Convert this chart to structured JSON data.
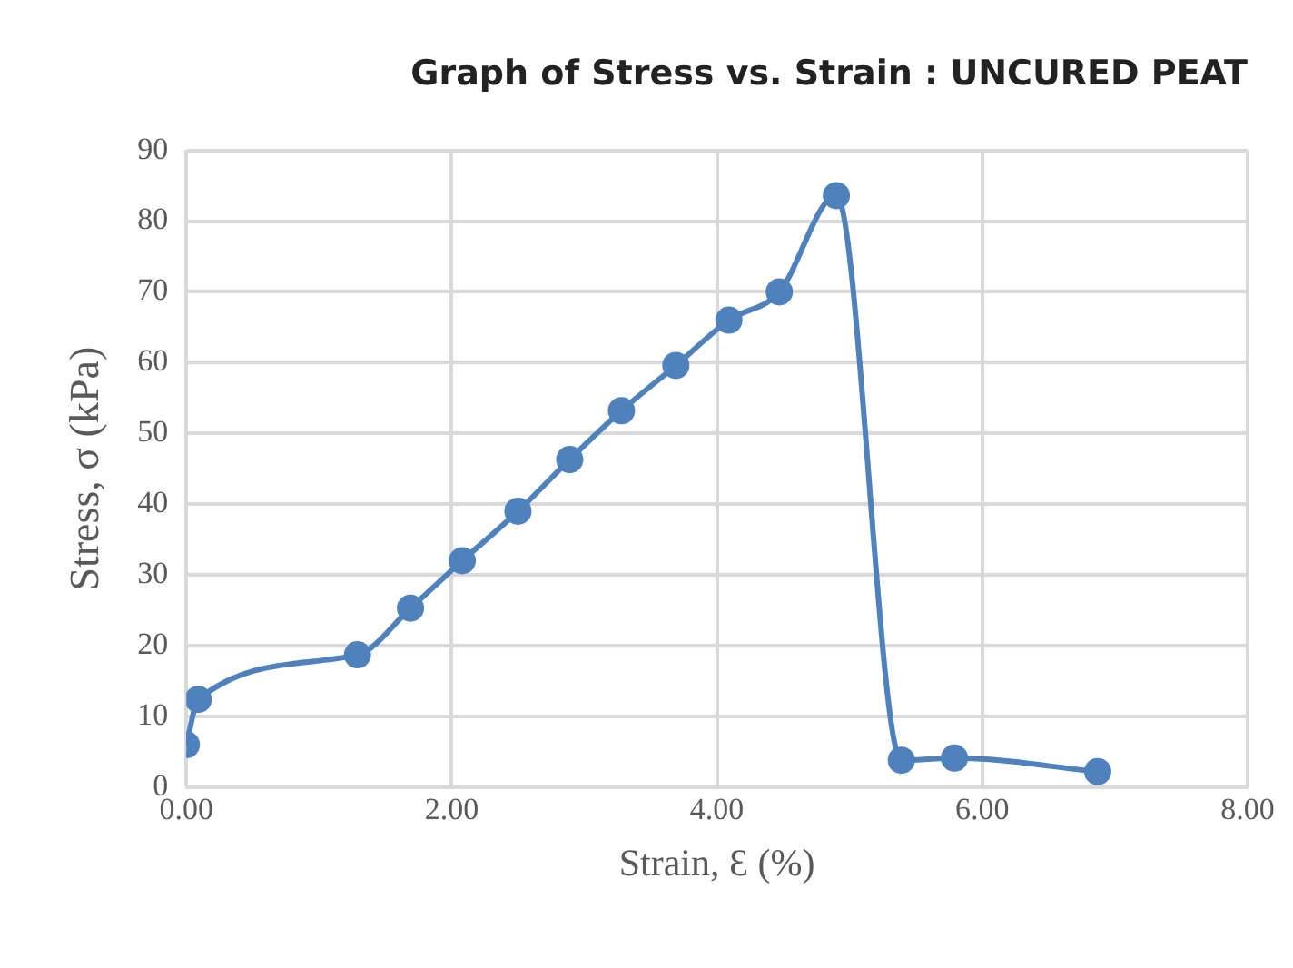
{
  "chart_data": {
    "type": "line",
    "title": "Graph of Stress vs. Strain : UNCURED PEAT",
    "xlabel": "Strain, Ɛ (%)",
    "ylabel": "Stress, σ (kPa)",
    "x": [
      0,
      0.09,
      1.29,
      1.69,
      2.08,
      2.5,
      2.89,
      3.28,
      3.69,
      4.09,
      4.47,
      4.9,
      5.39,
      5.79,
      6.87
    ],
    "series": [
      {
        "color": "#4f81bd",
        "values": [
          6,
          12.4,
          18.7,
          25.3,
          32,
          39,
          46.3,
          53.2,
          59.6,
          66,
          70,
          83.6,
          3.8,
          4.1,
          2.2
        ]
      }
    ],
    "xlim": [
      0,
      8
    ],
    "xticks": [
      {
        "value": 0,
        "label": "0.00"
      },
      {
        "value": 2,
        "label": "2.00"
      },
      {
        "value": 4,
        "label": "4.00"
      },
      {
        "value": 6,
        "label": "6.00"
      },
      {
        "value": 8,
        "label": "8.00"
      }
    ],
    "ylim": [
      0,
      90
    ],
    "yticks": [
      0,
      10,
      20,
      30,
      40,
      50,
      60,
      70,
      80,
      90
    ],
    "grid": true,
    "legend": false,
    "marker": "circle",
    "line_style": "solid"
  }
}
